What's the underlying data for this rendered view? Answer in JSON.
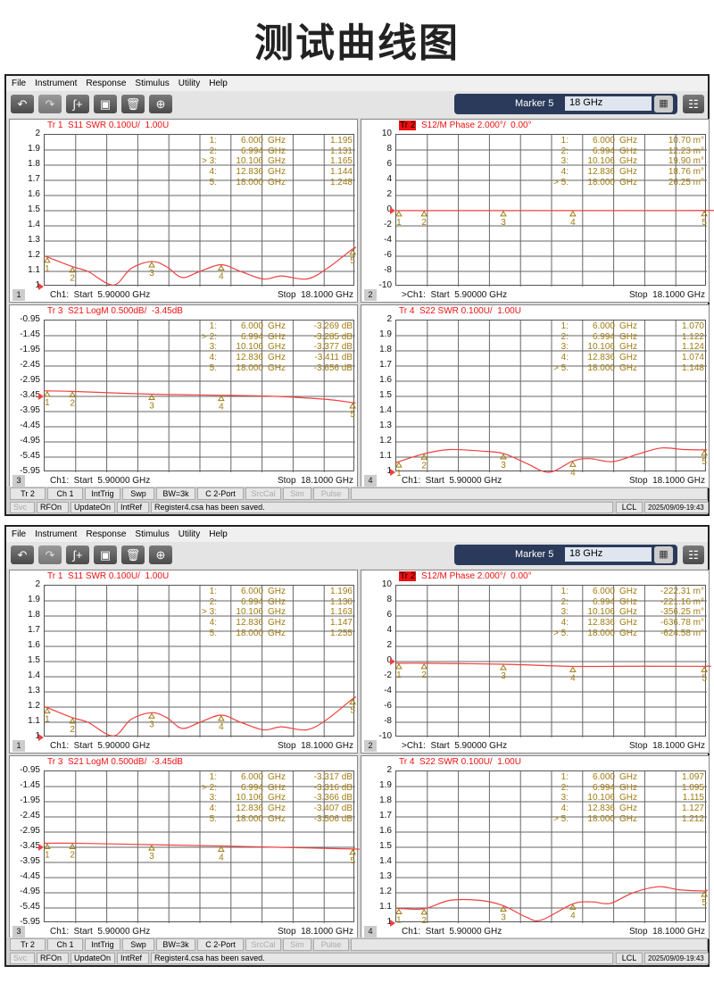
{
  "page_title": "测试曲线图",
  "menu": [
    "File",
    "Instrument",
    "Response",
    "Stimulus",
    "Utility",
    "Help"
  ],
  "toolbar": {
    "icons": [
      "undo-icon",
      "redo-icon",
      "add-trace-icon",
      "copy-icon",
      "delete-icon",
      "zoom-icon"
    ],
    "marker_label": "Marker 5",
    "marker_value": "18 GHz"
  },
  "softkeys": [
    {
      "label": "Tr 2",
      "disabled": false
    },
    {
      "label": "Ch 1",
      "disabled": false
    },
    {
      "label": "IntTrig",
      "disabled": false
    },
    {
      "label": "Swp",
      "disabled": false
    },
    {
      "label": "BW=3k",
      "disabled": false
    },
    {
      "label": "C  2-Port",
      "disabled": false
    },
    {
      "label": "SrcCal",
      "disabled": true
    },
    {
      "label": "Sim",
      "disabled": true
    },
    {
      "label": "Pulse",
      "disabled": true
    }
  ],
  "status": {
    "items": [
      {
        "label": "Svc",
        "disabled": true
      },
      {
        "label": "RFOn",
        "disabled": false
      },
      {
        "label": "UpdateOn",
        "disabled": false
      },
      {
        "label": "IntRef",
        "disabled": false
      }
    ],
    "message": "Register4.csa has been saved.",
    "lcl": "LCL",
    "datetime": "2025/09/09-19:43"
  },
  "colors": {
    "trace": "#f04040",
    "marker_text": "#a07a10",
    "title": "#f01010",
    "toolbar_marker_bg": "#2b3a5a"
  },
  "x_range_ghz": [
    5.9,
    18.1
  ],
  "screens": [
    {
      "panels": [
        {
          "num": "1",
          "tr": "Tr 1",
          "active": false,
          "title": "S11 SWR 0.100U/  1.00U",
          "yticks": [
            "2",
            "1.9",
            "1.8",
            "1.7",
            "1.6",
            "1.5",
            "1.4",
            "1.3",
            "1.2",
            "1.1",
            "1"
          ],
          "ylim": [
            1,
            2
          ],
          "start": "Ch1:  Start  5.90000 GHz",
          "stop": "Stop  18.1000 GHz",
          "markers": [
            {
              "id": "1:",
              "freq": "6.000",
              "unit": "GHz",
              "value": "1.195"
            },
            {
              "id": "2:",
              "freq": "6.994",
              "unit": "GHz",
              "value": "1.131"
            },
            {
              "id": "> 3:",
              "freq": "10.106",
              "unit": "GHz",
              "value": "1.165"
            },
            {
              "id": "4:",
              "freq": "12.836",
              "unit": "GHz",
              "value": "1.144"
            },
            {
              "id": "5:",
              "freq": "18.000",
              "unit": "GHz",
              "value": "1.248"
            }
          ],
          "trace": [
            [
              5.9,
              1.2
            ],
            [
              6,
              1.195
            ],
            [
              6.994,
              1.131
            ],
            [
              7.6,
              1.1
            ],
            [
              8.6,
              1.01
            ],
            [
              9.3,
              1.12
            ],
            [
              10.106,
              1.165
            ],
            [
              10.7,
              1.13
            ],
            [
              11.3,
              1.06
            ],
            [
              12.0,
              1.1
            ],
            [
              12.836,
              1.144
            ],
            [
              13.6,
              1.1
            ],
            [
              14.5,
              1.05
            ],
            [
              15.2,
              1.07
            ],
            [
              16.2,
              1.05
            ],
            [
              17.0,
              1.12
            ],
            [
              18,
              1.248
            ],
            [
              18.1,
              1.25
            ]
          ]
        },
        {
          "num": "2",
          "tr": "Tr 2",
          "active": true,
          "title": "S12/M Phase 2.000°/  0.00°",
          "yticks": [
            "10",
            "8",
            "6",
            "4",
            "2",
            "0",
            "-2",
            "-4",
            "-6",
            "-8",
            "-10"
          ],
          "ylim": [
            -10,
            10
          ],
          "start": ">Ch1:  Start  5.90000 GHz",
          "stop": "Stop  18.1000 GHz",
          "markers": [
            {
              "id": "1:",
              "freq": "6.000",
              "unit": "GHz",
              "value": "10.70 m°"
            },
            {
              "id": "2:",
              "freq": "6.994",
              "unit": "GHz",
              "value": "12.23 m°"
            },
            {
              "id": "3:",
              "freq": "10.106",
              "unit": "GHz",
              "value": "19.90 m°"
            },
            {
              "id": "4:",
              "freq": "12.836",
              "unit": "GHz",
              "value": "18.76 m°"
            },
            {
              "id": "> 5:",
              "freq": "18.000",
              "unit": "GHz",
              "value": "26.25 m°"
            }
          ],
          "trace": [
            [
              5.9,
              0.01
            ],
            [
              6,
              0.0107
            ],
            [
              6.994,
              0.0122
            ],
            [
              10.106,
              0.0199
            ],
            [
              12.836,
              0.0188
            ],
            [
              18,
              0.0263
            ],
            [
              18.1,
              0.026
            ]
          ]
        },
        {
          "num": "3",
          "tr": "Tr 3",
          "active": false,
          "title": "S21 LogM 0.500dB/  -3.45dB",
          "yticks": [
            "-0.95",
            "-1.45",
            "-1.95",
            "-2.45",
            "-2.95",
            "-3.45",
            "-3.95",
            "-4.45",
            "-4.95",
            "-5.45",
            "-5.95"
          ],
          "ylim": [
            -5.95,
            -0.95
          ],
          "start": "Ch1:  Start  5.90000 GHz",
          "stop": "Stop  18.1000 GHz",
          "markers": [
            {
              "id": "1:",
              "freq": "6.000",
              "unit": "GHz",
              "value": "-3.269 dB"
            },
            {
              "id": "> 2:",
              "freq": "6.994",
              "unit": "GHz",
              "value": "-3.285 dB"
            },
            {
              "id": "3:",
              "freq": "10.106",
              "unit": "GHz",
              "value": "-3.377 dB"
            },
            {
              "id": "4:",
              "freq": "12.836",
              "unit": "GHz",
              "value": "-3.411 dB"
            },
            {
              "id": "5:",
              "freq": "18.000",
              "unit": "GHz",
              "value": "-3.656 dB"
            }
          ],
          "trace": [
            [
              5.9,
              -3.26
            ],
            [
              6,
              -3.269
            ],
            [
              6.994,
              -3.285
            ],
            [
              10.106,
              -3.377
            ],
            [
              12.836,
              -3.411
            ],
            [
              15,
              -3.45
            ],
            [
              17,
              -3.55
            ],
            [
              18,
              -3.656
            ],
            [
              18.1,
              -3.66
            ]
          ]
        },
        {
          "num": "4",
          "tr": "Tr 4",
          "active": false,
          "title": "S22 SWR 0.100U/  1.00U",
          "yticks": [
            "2",
            "1.9",
            "1.8",
            "1.7",
            "1.6",
            "1.5",
            "1.4",
            "1.3",
            "1.2",
            "1.1",
            "1"
          ],
          "ylim": [
            1,
            2
          ],
          "start": "Ch1:  Start  5.90000 GHz",
          "stop": "Stop  18.1000 GHz",
          "markers": [
            {
              "id": "1:",
              "freq": "6.000",
              "unit": "GHz",
              "value": "1.070"
            },
            {
              "id": "2:",
              "freq": "6.994",
              "unit": "GHz",
              "value": "1.122"
            },
            {
              "id": "3:",
              "freq": "10.106",
              "unit": "GHz",
              "value": "1.124"
            },
            {
              "id": "4:",
              "freq": "12.836",
              "unit": "GHz",
              "value": "1.074"
            },
            {
              "id": "> 5:",
              "freq": "18.000",
              "unit": "GHz",
              "value": "1.148"
            }
          ],
          "trace": [
            [
              5.9,
              1.06
            ],
            [
              6,
              1.07
            ],
            [
              6.994,
              1.122
            ],
            [
              8.0,
              1.15
            ],
            [
              9.2,
              1.14
            ],
            [
              10.106,
              1.124
            ],
            [
              11.0,
              1.06
            ],
            [
              11.9,
              1.0
            ],
            [
              12.836,
              1.074
            ],
            [
              13.5,
              1.09
            ],
            [
              14.4,
              1.07
            ],
            [
              15.4,
              1.12
            ],
            [
              16.3,
              1.16
            ],
            [
              17.2,
              1.15
            ],
            [
              18,
              1.148
            ],
            [
              18.1,
              1.15
            ]
          ]
        }
      ]
    },
    {
      "panels": [
        {
          "num": "1",
          "tr": "Tr 1",
          "active": false,
          "title": "S11 SWR 0.100U/  1.00U",
          "yticks": [
            "2",
            "1.9",
            "1.8",
            "1.7",
            "1.6",
            "1.5",
            "1.4",
            "1.3",
            "1.2",
            "1.1",
            "1"
          ],
          "ylim": [
            1,
            2
          ],
          "start": "Ch1:  Start  5.90000 GHz",
          "stop": "Stop  18.1000 GHz",
          "markers": [
            {
              "id": "1:",
              "freq": "6.000",
              "unit": "GHz",
              "value": "1.196"
            },
            {
              "id": "2:",
              "freq": "6.994",
              "unit": "GHz",
              "value": "1.130"
            },
            {
              "id": "> 3:",
              "freq": "10.106",
              "unit": "GHz",
              "value": "1.163"
            },
            {
              "id": "4:",
              "freq": "12.836",
              "unit": "GHz",
              "value": "1.147"
            },
            {
              "id": "5:",
              "freq": "18.000",
              "unit": "GHz",
              "value": "1.255"
            }
          ],
          "trace": [
            [
              5.9,
              1.2
            ],
            [
              6,
              1.196
            ],
            [
              6.994,
              1.13
            ],
            [
              7.6,
              1.1
            ],
            [
              8.6,
              1.01
            ],
            [
              9.3,
              1.12
            ],
            [
              10.106,
              1.163
            ],
            [
              10.7,
              1.13
            ],
            [
              11.3,
              1.06
            ],
            [
              12.0,
              1.1
            ],
            [
              12.836,
              1.147
            ],
            [
              13.6,
              1.1
            ],
            [
              14.5,
              1.05
            ],
            [
              15.2,
              1.07
            ],
            [
              16.2,
              1.05
            ],
            [
              17.0,
              1.12
            ],
            [
              18,
              1.255
            ],
            [
              18.1,
              1.26
            ]
          ]
        },
        {
          "num": "2",
          "tr": "Tr 2",
          "active": true,
          "title": "S12/M Phase 2.000°/  0.00°",
          "yticks": [
            "10",
            "8",
            "6",
            "4",
            "2",
            "0",
            "-2",
            "-4",
            "-6",
            "-8",
            "-10"
          ],
          "ylim": [
            -10,
            10
          ],
          "start": ">Ch1:  Start  5.90000 GHz",
          "stop": "Stop  18.1000 GHz",
          "markers": [
            {
              "id": "1:",
              "freq": "6.000",
              "unit": "GHz",
              "value": "-222.31 m°"
            },
            {
              "id": "2:",
              "freq": "6.994",
              "unit": "GHz",
              "value": "-221.16 m°"
            },
            {
              "id": "3:",
              "freq": "10.106",
              "unit": "GHz",
              "value": "-356.25 m°"
            },
            {
              "id": "4:",
              "freq": "12.836",
              "unit": "GHz",
              "value": "-636.78 m°"
            },
            {
              "id": "> 5:",
              "freq": "18.000",
              "unit": "GHz",
              "value": "-624.58 m°"
            }
          ],
          "trace": [
            [
              5.9,
              -0.22
            ],
            [
              6,
              -0.222
            ],
            [
              6.994,
              -0.221
            ],
            [
              10.106,
              -0.356
            ],
            [
              12.836,
              -0.637
            ],
            [
              15,
              -0.62
            ],
            [
              18,
              -0.625
            ],
            [
              18.1,
              -0.6
            ]
          ]
        },
        {
          "num": "3",
          "tr": "Tr 3",
          "active": false,
          "title": "S21 LogM 0.500dB/  -3.45dB",
          "yticks": [
            "-0.95",
            "-1.45",
            "-1.95",
            "-2.45",
            "-2.95",
            "-3.45",
            "-3.95",
            "-4.45",
            "-4.95",
            "-5.45",
            "-5.95"
          ],
          "ylim": [
            -5.95,
            -0.95
          ],
          "start": "Ch1:  Start  5.90000 GHz",
          "stop": "Stop  18.1000 GHz",
          "markers": [
            {
              "id": "1:",
              "freq": "6.000",
              "unit": "GHz",
              "value": "-3.317 dB"
            },
            {
              "id": "> 2:",
              "freq": "6.994",
              "unit": "GHz",
              "value": "-3.316 dB"
            },
            {
              "id": "3:",
              "freq": "10.106",
              "unit": "GHz",
              "value": "-3.366 dB"
            },
            {
              "id": "4:",
              "freq": "12.836",
              "unit": "GHz",
              "value": "-3.407 dB"
            },
            {
              "id": "5:",
              "freq": "18.000",
              "unit": "GHz",
              "value": "-3.506 dB"
            }
          ],
          "trace": [
            [
              5.9,
              -3.31
            ],
            [
              6,
              -3.317
            ],
            [
              6.994,
              -3.316
            ],
            [
              10.106,
              -3.366
            ],
            [
              12.836,
              -3.407
            ],
            [
              15,
              -3.45
            ],
            [
              18,
              -3.506
            ],
            [
              18.1,
              -3.51
            ]
          ]
        },
        {
          "num": "4",
          "tr": "Tr 4",
          "active": false,
          "title": "S22 SWR 0.100U/  1.00U",
          "yticks": [
            "2",
            "1.9",
            "1.8",
            "1.7",
            "1.6",
            "1.5",
            "1.4",
            "1.3",
            "1.2",
            "1.1",
            "1"
          ],
          "ylim": [
            1,
            2
          ],
          "start": "Ch1:  Start  5.90000 GHz",
          "stop": "Stop  18.1000 GHz",
          "markers": [
            {
              "id": "1:",
              "freq": "6.000",
              "unit": "GHz",
              "value": "1.097"
            },
            {
              "id": "2:",
              "freq": "6.994",
              "unit": "GHz",
              "value": "1.095"
            },
            {
              "id": "3:",
              "freq": "10.106",
              "unit": "GHz",
              "value": "1.115"
            },
            {
              "id": "4:",
              "freq": "12.836",
              "unit": "GHz",
              "value": "1.127"
            },
            {
              "id": "> 5:",
              "freq": "18.000",
              "unit": "GHz",
              "value": "1.212"
            }
          ],
          "trace": [
            [
              5.9,
              1.1
            ],
            [
              6,
              1.097
            ],
            [
              6.994,
              1.095
            ],
            [
              8.0,
              1.15
            ],
            [
              9.2,
              1.15
            ],
            [
              10.106,
              1.115
            ],
            [
              11.0,
              1.04
            ],
            [
              11.6,
              1.02
            ],
            [
              12.836,
              1.127
            ],
            [
              13.6,
              1.14
            ],
            [
              14.3,
              1.13
            ],
            [
              15.2,
              1.2
            ],
            [
              16.2,
              1.24
            ],
            [
              17.0,
              1.22
            ],
            [
              18,
              1.212
            ],
            [
              18.1,
              1.22
            ]
          ]
        }
      ]
    }
  ]
}
